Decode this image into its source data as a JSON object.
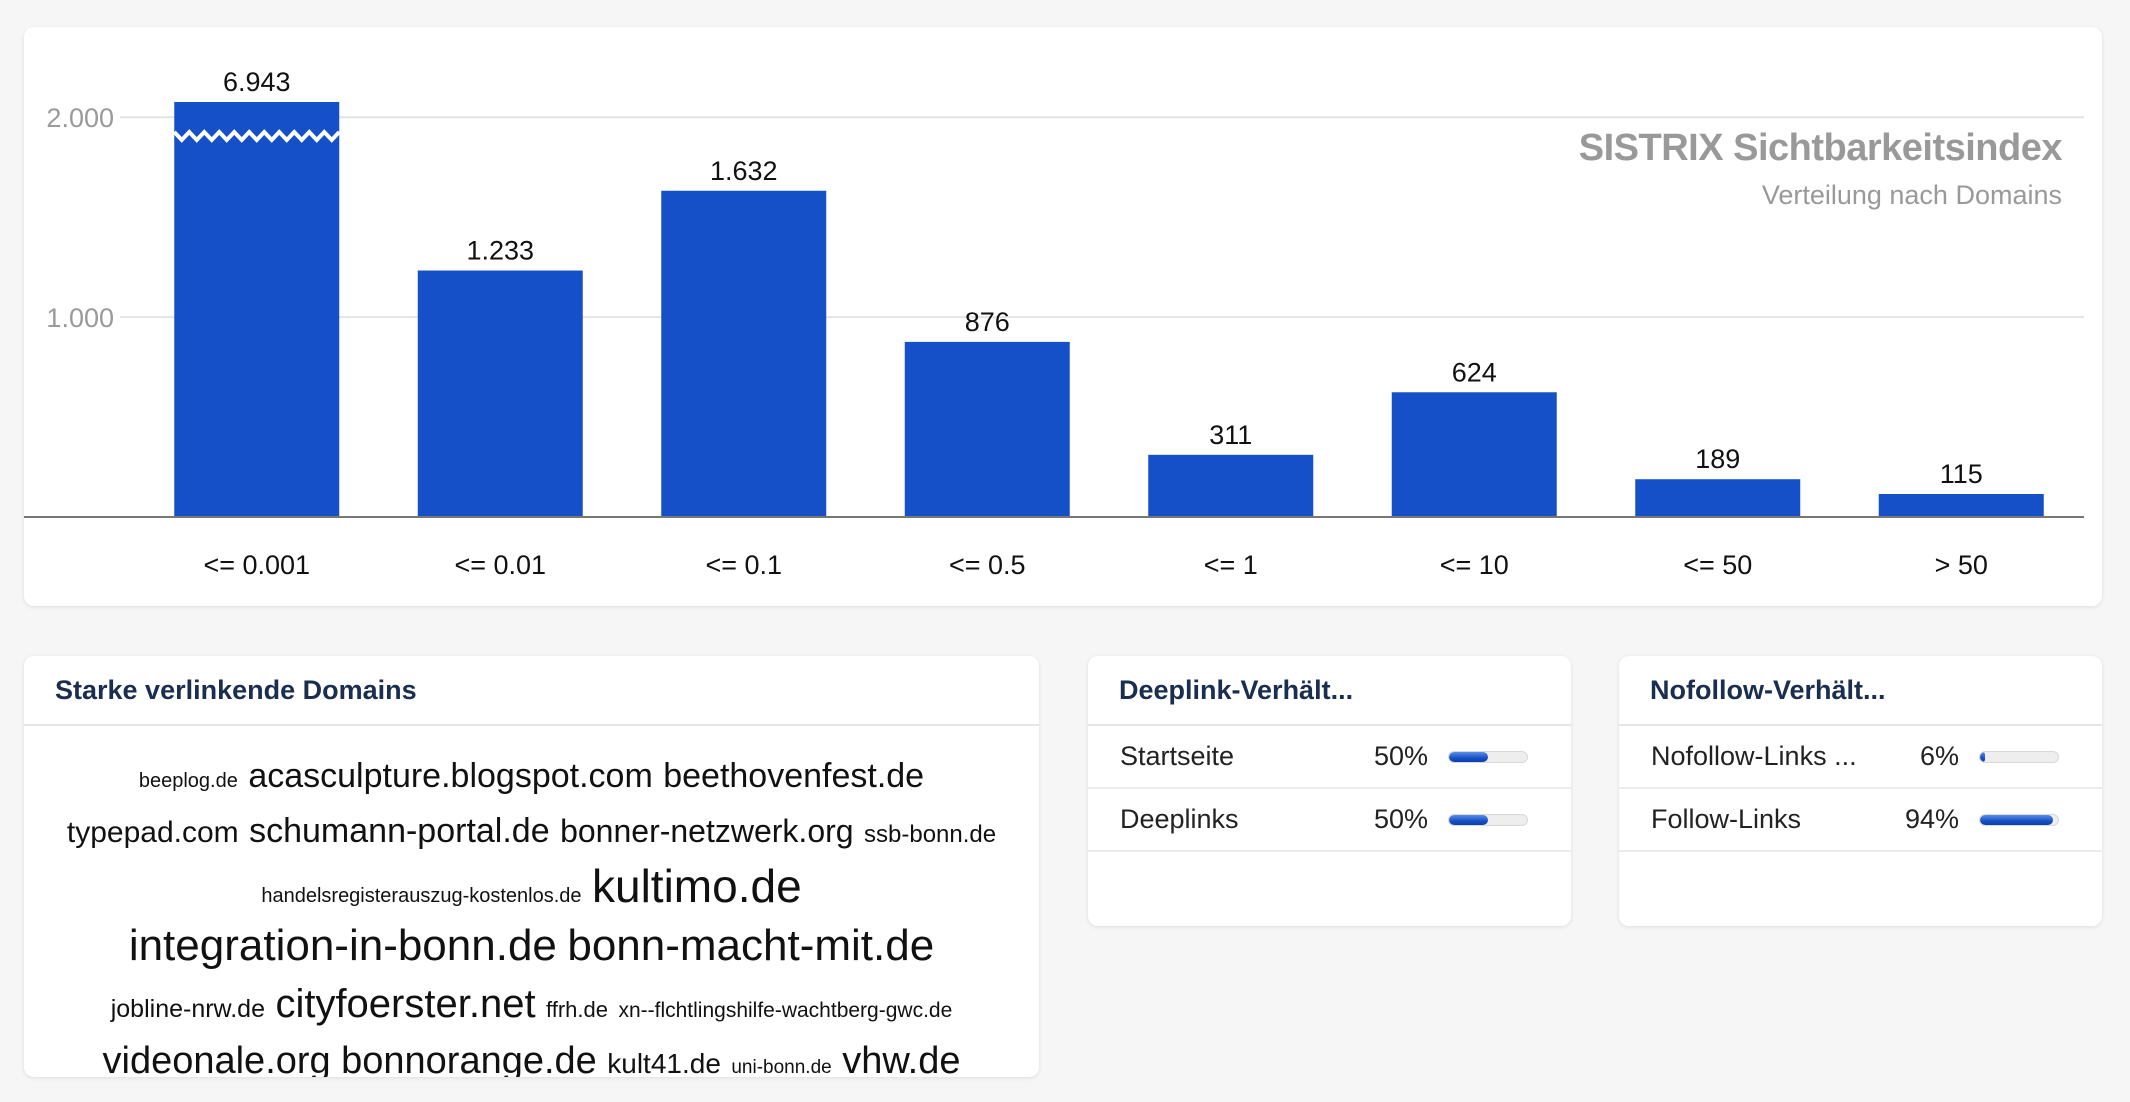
{
  "chart": {
    "title": "SISTRIX Sichtbarkeitsindex",
    "subtitle": "Verteilung nach Domains"
  },
  "chart_data": {
    "type": "bar",
    "categories": [
      "<= 0.001",
      "<= 0.01",
      "<= 0.1",
      "<= 0.5",
      "<= 1",
      "<= 10",
      "<= 50",
      "> 50"
    ],
    "values": [
      6943,
      1233,
      1632,
      876,
      311,
      624,
      189,
      115
    ],
    "value_labels": [
      "6.943",
      "1.233",
      "1.632",
      "876",
      "311",
      "624",
      "189",
      "115"
    ],
    "ytick_values": [
      1000,
      2000
    ],
    "ytick_labels": [
      "1.000",
      "2.000"
    ],
    "ylim": [
      0,
      2000
    ],
    "axis_break": "first bar truncated",
    "bar_color": "#1650c8",
    "grid": true
  },
  "domains": {
    "title": "Starke verlinkende Domains",
    "tags": [
      {
        "text": "beeplog.de",
        "size": 20
      },
      {
        "text": "acasculpture.blogspot.com",
        "size": 34
      },
      {
        "text": "beethovenfest.de",
        "size": 34
      },
      {
        "text": "typepad.com",
        "size": 30
      },
      {
        "text": "schumann-portal.de",
        "size": 34
      },
      {
        "text": "bonner-netzwerk.org",
        "size": 32
      },
      {
        "text": "ssb-bonn.de",
        "size": 24
      },
      {
        "text": "handelsregisterauszug-kostenlos.de",
        "size": 20
      },
      {
        "text": "kultimo.de",
        "size": 46
      },
      {
        "text": "integration-in-bonn.de",
        "size": 44
      },
      {
        "text": "bonn-macht-mit.de",
        "size": 44
      },
      {
        "text": "jobline-nrw.de",
        "size": 25
      },
      {
        "text": "cityfoerster.net",
        "size": 40
      },
      {
        "text": "ffrh.de",
        "size": 22
      },
      {
        "text": "xn--flchtlingshilfe-wachtberg-gwc.de",
        "size": 21
      },
      {
        "text": "videonale.org",
        "size": 38
      },
      {
        "text": "bonnorange.de",
        "size": 38
      },
      {
        "text": "kult41.de",
        "size": 28
      },
      {
        "text": "uni-bonn.de",
        "size": 19
      },
      {
        "text": "vhw.de",
        "size": 38
      }
    ]
  },
  "deeplink": {
    "title": "Deeplink-Verhält...",
    "rows": [
      {
        "label": "Startseite",
        "value": "50%",
        "fraction": 0.5
      },
      {
        "label": "Deeplinks",
        "value": "50%",
        "fraction": 0.5
      }
    ]
  },
  "nofollow": {
    "title": "Nofollow-Verhält...",
    "rows": [
      {
        "label": "Nofollow-Links ...",
        "value": "6%",
        "fraction": 0.06
      },
      {
        "label": "Follow-Links",
        "value": "94%",
        "fraction": 0.94
      }
    ]
  }
}
